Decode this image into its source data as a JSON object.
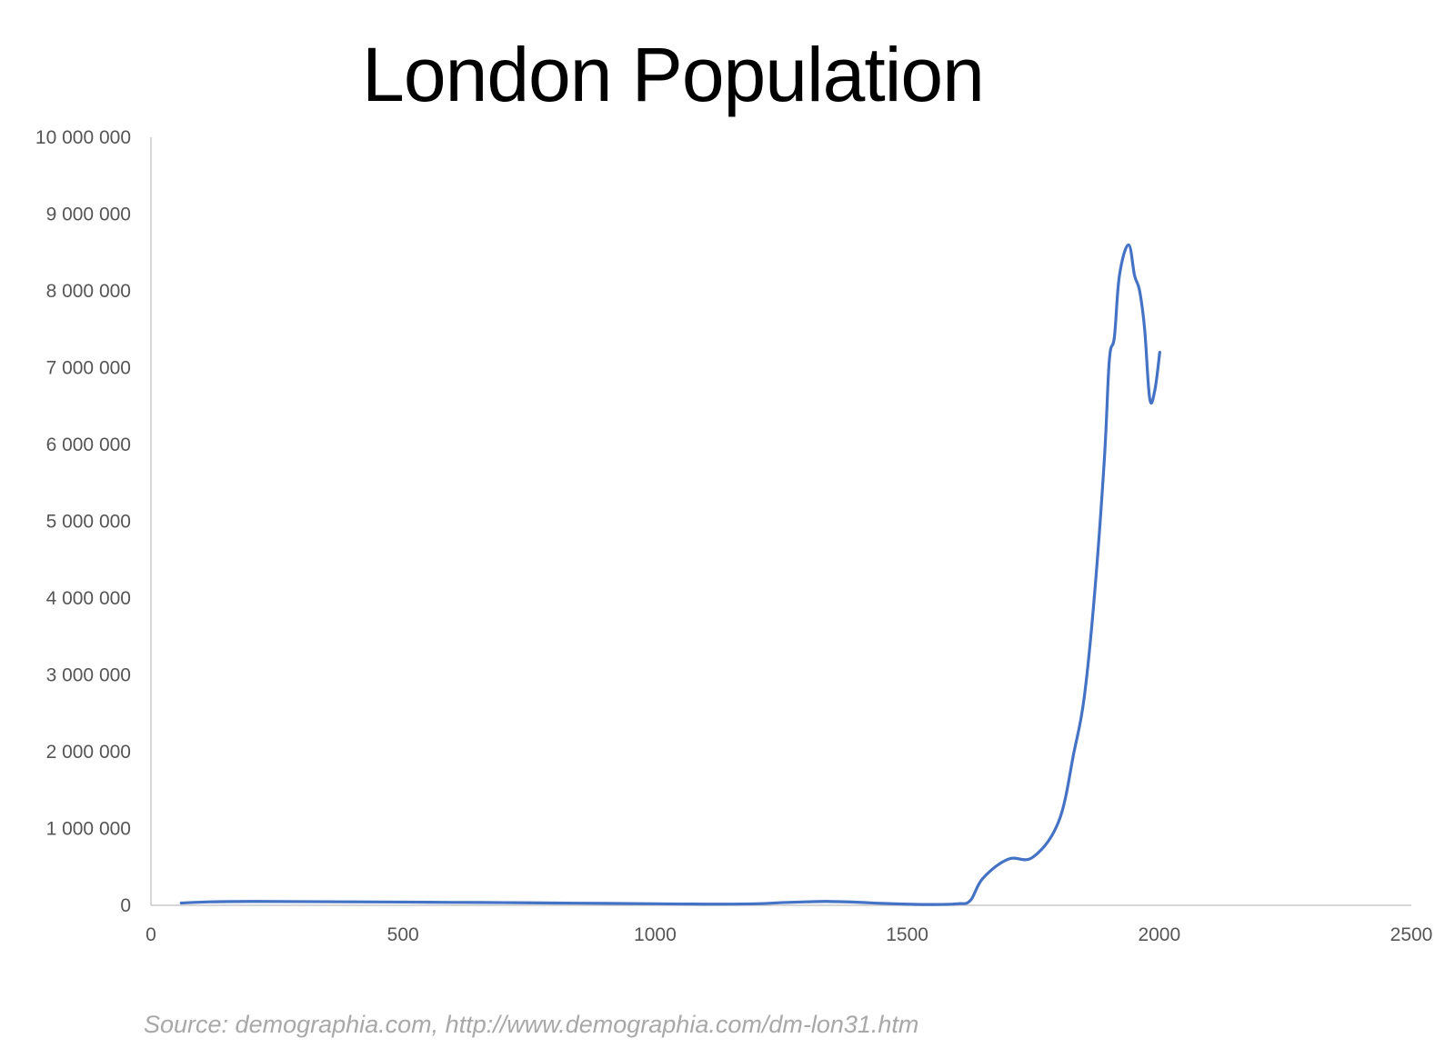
{
  "chart_data": {
    "type": "line",
    "title": "London Population",
    "xlabel": "",
    "ylabel": "",
    "xlim": [
      0,
      2500
    ],
    "ylim": [
      0,
      10000000
    ],
    "x_ticks": [
      0,
      500,
      1000,
      1500,
      2000,
      2500
    ],
    "x_tick_labels": [
      "0",
      "500",
      "1000",
      "1500",
      "2000",
      "2500"
    ],
    "y_ticks": [
      0,
      1000000,
      2000000,
      3000000,
      4000000,
      5000000,
      6000000,
      7000000,
      8000000,
      9000000,
      10000000
    ],
    "y_tick_labels": [
      "0",
      "1 000 000",
      "2 000 000",
      "3 000 000",
      "4 000 000",
      "5 000 000",
      "6 000 000",
      "7 000 000",
      "8 000 000",
      "9 000 000",
      "10 000 000"
    ],
    "grid": false,
    "legend": "none",
    "series": [
      {
        "color": "#4472C4",
        "points": [
          [
            60,
            30000
          ],
          [
            120,
            45000
          ],
          [
            200,
            50000
          ],
          [
            300,
            48000
          ],
          [
            400,
            45000
          ],
          [
            500,
            42000
          ],
          [
            600,
            38000
          ],
          [
            700,
            35000
          ],
          [
            800,
            30000
          ],
          [
            900,
            25000
          ],
          [
            1000,
            20000
          ],
          [
            1100,
            15000
          ],
          [
            1200,
            20000
          ],
          [
            1250,
            35000
          ],
          [
            1300,
            45000
          ],
          [
            1340,
            50000
          ],
          [
            1400,
            40000
          ],
          [
            1450,
            25000
          ],
          [
            1500,
            15000
          ],
          [
            1550,
            10000
          ],
          [
            1600,
            20000
          ],
          [
            1625,
            60000
          ],
          [
            1650,
            350000
          ],
          [
            1700,
            600000
          ],
          [
            1750,
            630000
          ],
          [
            1801,
            1100000
          ],
          [
            1831,
            2000000
          ],
          [
            1851,
            2700000
          ],
          [
            1871,
            4000000
          ],
          [
            1891,
            5800000
          ],
          [
            1901,
            7100000
          ],
          [
            1911,
            7400000
          ],
          [
            1921,
            8200000
          ],
          [
            1939,
            8600000
          ],
          [
            1951,
            8200000
          ],
          [
            1961,
            8000000
          ],
          [
            1971,
            7500000
          ],
          [
            1981,
            6600000
          ],
          [
            1991,
            6700000
          ],
          [
            2001,
            7200000
          ]
        ]
      }
    ]
  },
  "source": "Source: demographia.com, http://www.demographia.com/dm-lon31.htm"
}
